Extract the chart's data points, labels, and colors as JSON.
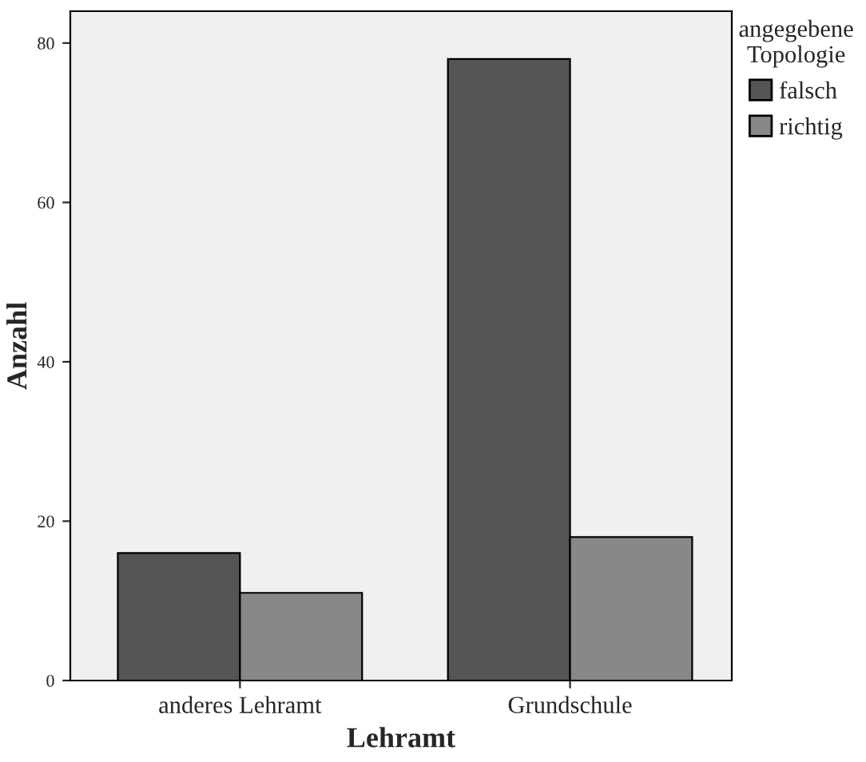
{
  "chart_data": {
    "type": "bar",
    "xlabel": "Lehramt",
    "ylabel": "Anzahl",
    "legend_title": "angegebene\nTopologie",
    "categories": [
      "anderes Lehramt",
      "Grundschule"
    ],
    "series": [
      {
        "name": "falsch",
        "color": "#555555",
        "values": [
          16,
          78
        ]
      },
      {
        "name": "richtig",
        "color": "#888888",
        "values": [
          11,
          18
        ]
      }
    ],
    "ylim": [
      0,
      84
    ],
    "yticks": [
      0,
      20,
      40,
      60,
      80
    ],
    "grid": false,
    "legend": "top right"
  }
}
